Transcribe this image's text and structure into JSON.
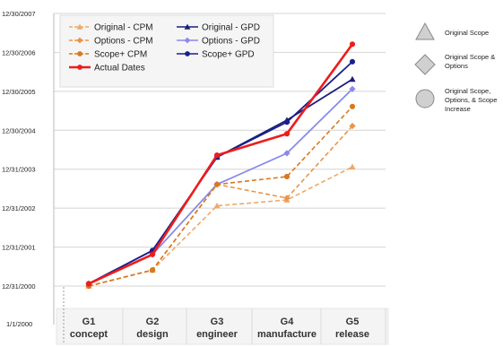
{
  "chart_data": {
    "type": "line",
    "y_axis": {
      "scale": "date",
      "range": [
        "2000-01-01",
        "2007-12-30"
      ],
      "ticks": [
        "12/30/2007",
        "12/30/2006",
        "12/30/2005",
        "12/30/2004",
        "12/31/2003",
        "12/31/2002",
        "12/31/2001",
        "12/31/2000",
        "1/1/2000"
      ],
      "grid": true
    },
    "x_axis": {
      "categories": [
        {
          "line1": "G1",
          "line2": "concept"
        },
        {
          "line1": "G2",
          "line2": "design"
        },
        {
          "line1": "G3",
          "line2": "engineer"
        },
        {
          "line1": "G4",
          "line2": "manufacture"
        },
        {
          "line1": "G5",
          "line2": "release"
        }
      ]
    },
    "legend_position": "top-left",
    "series": [
      {
        "name": "Original - CPM",
        "color": "#f0a868",
        "marker": "triangle",
        "dash": true,
        "values": [
          2000.99,
          2001.4,
          2003.05,
          2003.2,
          2004.05
        ]
      },
      {
        "name": "Original - GPD",
        "color": "#1a1f7a",
        "marker": "triangle",
        "dash": false,
        "values": [
          2001.05,
          2001.9,
          2004.3,
          2005.25,
          2006.3
        ]
      },
      {
        "name": "Options - CPM",
        "color": "#e8954a",
        "marker": "diamond",
        "dash": true,
        "values": [
          2000.99,
          2001.4,
          2003.6,
          2003.25,
          2005.1
        ]
      },
      {
        "name": "Options - GPD",
        "color": "#8a8ae8",
        "marker": "diamond",
        "dash": false,
        "values": [
          2001.05,
          2001.8,
          2003.6,
          2004.4,
          2006.05
        ]
      },
      {
        "name": "Scope+ CPM",
        "color": "#d9781e",
        "marker": "circle",
        "dash": true,
        "values": [
          2000.99,
          2001.4,
          2003.6,
          2003.8,
          2005.6
        ]
      },
      {
        "name": "Scope+ GPD",
        "color": "#1a1f8a",
        "marker": "circle",
        "dash": false,
        "values": [
          2001.05,
          2001.9,
          2004.3,
          2005.2,
          2006.75
        ]
      },
      {
        "name": "Actual Dates",
        "color": "#ee1c1c",
        "marker": "circle",
        "dash": false,
        "values": [
          2001.05,
          2001.8,
          2004.35,
          2004.9,
          2007.2
        ]
      }
    ]
  },
  "shape_key": [
    {
      "shape": "triangle",
      "lines": [
        "Original Scope"
      ]
    },
    {
      "shape": "diamond",
      "lines": [
        "Original Scope &",
        "Options"
      ]
    },
    {
      "shape": "circle",
      "lines": [
        "Original Scope,",
        "Options, & Scope",
        "Increase"
      ]
    }
  ]
}
